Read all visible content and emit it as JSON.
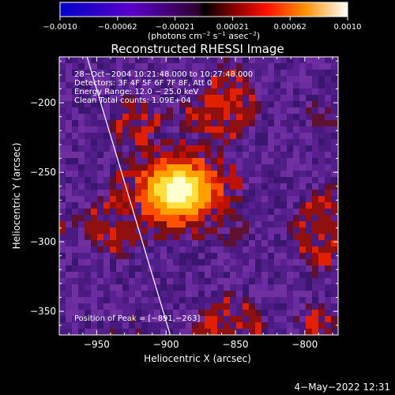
{
  "chart_data": {
    "type": "heatmap",
    "title": "Reconstructed RHESSI Image",
    "colorbar": {
      "ticks": [
        "−0.0010",
        "−0.00062",
        "−0.00021",
        "0.00021",
        "0.00062",
        "0.0010"
      ],
      "range": [
        -0.001,
        0.001
      ],
      "label_main": "(photons cm",
      "label_exp1": "−2",
      "label_mid": " s",
      "label_exp2": "−1",
      "label_end": " asec",
      "label_exp3": "−2",
      "label_close": ")"
    },
    "xlabel": "Heliocentric X (arcsec)",
    "ylabel": "Heliocentric Y (arcsec)",
    "xlim": [
      -977,
      -776
    ],
    "ylim": [
      -367,
      -167
    ],
    "xticks": [
      -950,
      -900,
      -850,
      -800
    ],
    "yticks": [
      -200,
      -250,
      -300,
      -350
    ],
    "xtick_labels": [
      "−950",
      "−900",
      "−850",
      "−800"
    ],
    "ytick_labels": [
      "−200",
      "−250",
      "−300",
      "−350"
    ],
    "annotations": [
      "28−Oct−2004 10:21:48.000 to 10:27:48.000",
      "Detectors: 3F 4F 5F 6F 7F 8F, Att 0",
      "Energy Range: 12.0 − 25.0 keV",
      "Clean    Total counts: 1.09E+04"
    ],
    "peak_label": "Position of Peak = [−891,−263]",
    "peak": [
      -891,
      -263
    ],
    "limb_line": [
      [
        -957,
        -167
      ],
      [
        -897,
        -367
      ]
    ]
  },
  "footer_date": "4−May−2022 12:31"
}
